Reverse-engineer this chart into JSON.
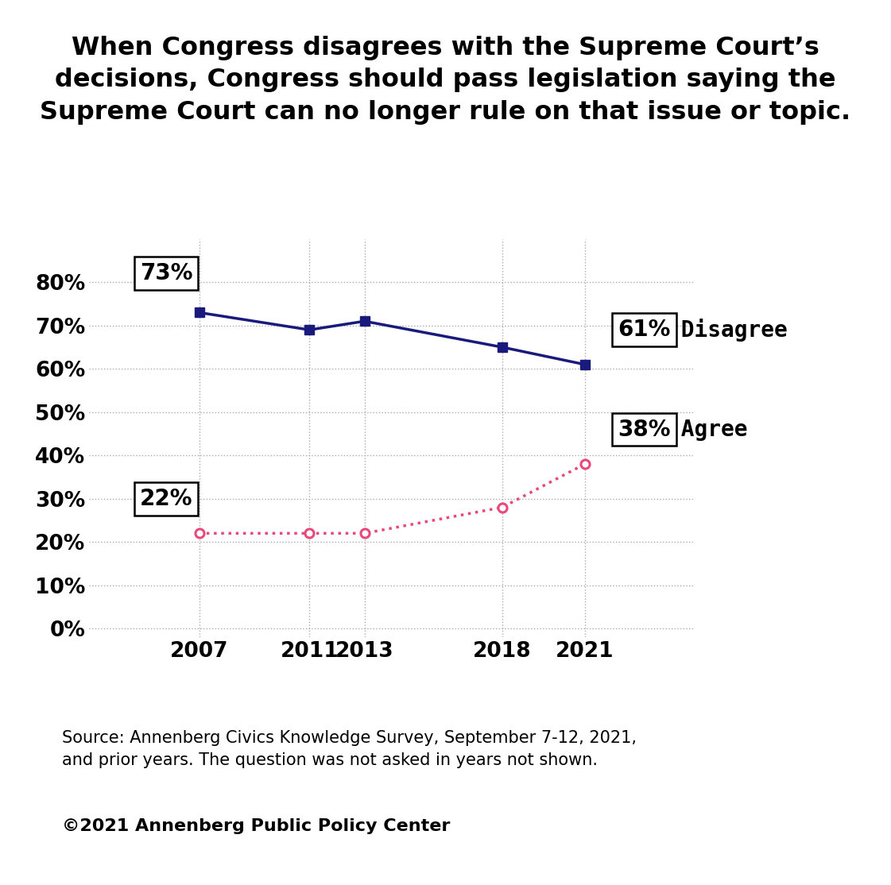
{
  "title_lines": [
    "When Congress disagrees with the Supreme Court’s",
    "decisions, Congress should pass legislation saying the",
    "Supreme Court can no longer rule on that issue or topic."
  ],
  "years": [
    2007,
    2011,
    2013,
    2018,
    2021
  ],
  "disagree_values": [
    73,
    69,
    71,
    65,
    61
  ],
  "agree_values": [
    22,
    22,
    22,
    28,
    38
  ],
  "disagree_color": "#1a1a7c",
  "agree_color": "#e8497a",
  "disagree_label": " Disagree",
  "agree_label": " Agree",
  "first_disagree_label": "73%",
  "last_disagree_label": "61%",
  "first_agree_label": "22%",
  "last_agree_label": "38%",
  "yticks": [
    0,
    10,
    20,
    30,
    40,
    50,
    60,
    70,
    80
  ],
  "ylim": [
    -2,
    90
  ],
  "xlim": [
    2003,
    2025
  ],
  "source_line1": "Source: Annenberg Civics Knowledge Survey, September 7-12, 2021,",
  "source_line2": "and prior years. The question was not asked in years not shown.",
  "copyright": "©2021 Annenberg Public Policy Center",
  "background_color": "#ffffff",
  "title_fontsize": 23,
  "axis_fontsize": 19,
  "annotation_fontsize": 20,
  "source_fontsize": 15,
  "copyright_fontsize": 16
}
